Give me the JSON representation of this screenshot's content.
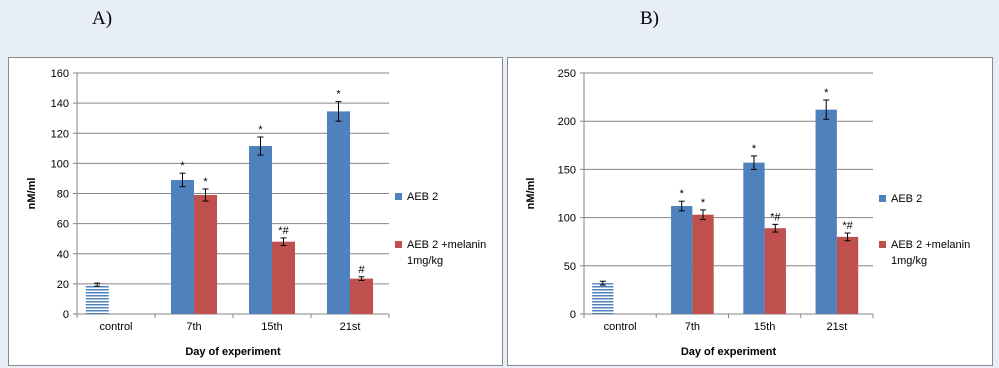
{
  "panels": [
    {
      "letter": "A)"
    },
    {
      "letter": "B)"
    }
  ],
  "colors": {
    "aeb2": "#4f81bd",
    "aeb2_melanin": "#c0504d",
    "control_hatch": "#4f81bd"
  },
  "chart_data": [
    {
      "type": "bar",
      "panel": "A)",
      "categories": [
        "control",
        "7th",
        "15th",
        "21st"
      ],
      "xlabel": "Day of experiment",
      "ylabel": "nM/ml",
      "ylim": [
        0,
        160
      ],
      "yticks": [
        0,
        20,
        40,
        60,
        80,
        100,
        120,
        140,
        160
      ],
      "legend_position": "right",
      "control": {
        "value": 19.5,
        "error": 1,
        "style": "horizontal-hatch"
      },
      "series": [
        {
          "name": "AEB 2",
          "values": [
            null,
            89,
            111.5,
            134.5
          ],
          "errors": [
            null,
            4.5,
            6,
            6.5
          ],
          "labels": [
            "",
            "*",
            "*",
            "*"
          ]
        },
        {
          "name": "AEB 2 +melanin 1mg/kg",
          "values": [
            null,
            79,
            48,
            23.5
          ],
          "errors": [
            null,
            4,
            2.5,
            1.2
          ],
          "labels": [
            "",
            "*",
            "*#",
            "#"
          ]
        }
      ]
    },
    {
      "type": "bar",
      "panel": "B)",
      "categories": [
        "control",
        "7th",
        "15th",
        "21st"
      ],
      "xlabel": "Day of experiment",
      "ylabel": "nM/ml",
      "ylim": [
        0,
        250
      ],
      "yticks": [
        0,
        50,
        100,
        150,
        200,
        250
      ],
      "legend_position": "right",
      "control": {
        "value": 32,
        "error": 2,
        "style": "horizontal-hatch"
      },
      "series": [
        {
          "name": "AEB 2",
          "values": [
            null,
            112,
            157,
            212
          ],
          "errors": [
            null,
            5,
            7,
            10
          ],
          "labels": [
            "",
            "*",
            "*",
            "*"
          ]
        },
        {
          "name": "AEB 2 +melanin 1mg/kg",
          "values": [
            null,
            103,
            89,
            80
          ],
          "errors": [
            null,
            5,
            4,
            4
          ],
          "labels": [
            "",
            "*",
            "*#",
            "*#"
          ]
        }
      ]
    }
  ]
}
